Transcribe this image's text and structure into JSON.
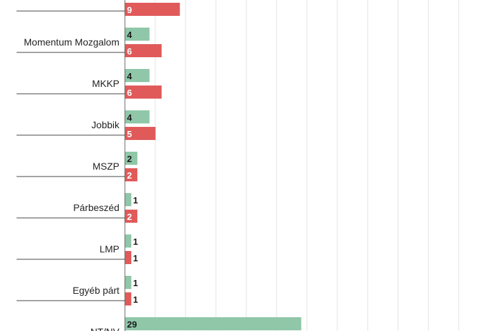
{
  "chart_data": {
    "type": "bar",
    "orientation": "horizontal",
    "categories": [
      "",
      "Momentum Mozgalom",
      "MKKP",
      "Jobbik",
      "MSZP",
      "Párbeszéd",
      "LMP",
      "Egyéb párt",
      "NT/NV"
    ],
    "series": [
      {
        "color": "#8fc7a8",
        "values": [
          null,
          4,
          4,
          4,
          2,
          1,
          1,
          1,
          29
        ]
      },
      {
        "color": "#e05a5a",
        "values": [
          9,
          6,
          6,
          5,
          2,
          2,
          1,
          1,
          null
        ]
      }
    ],
    "xlim": [
      0,
      59
    ],
    "grid": true,
    "title": "",
    "xlabel": "",
    "ylabel": ""
  }
}
